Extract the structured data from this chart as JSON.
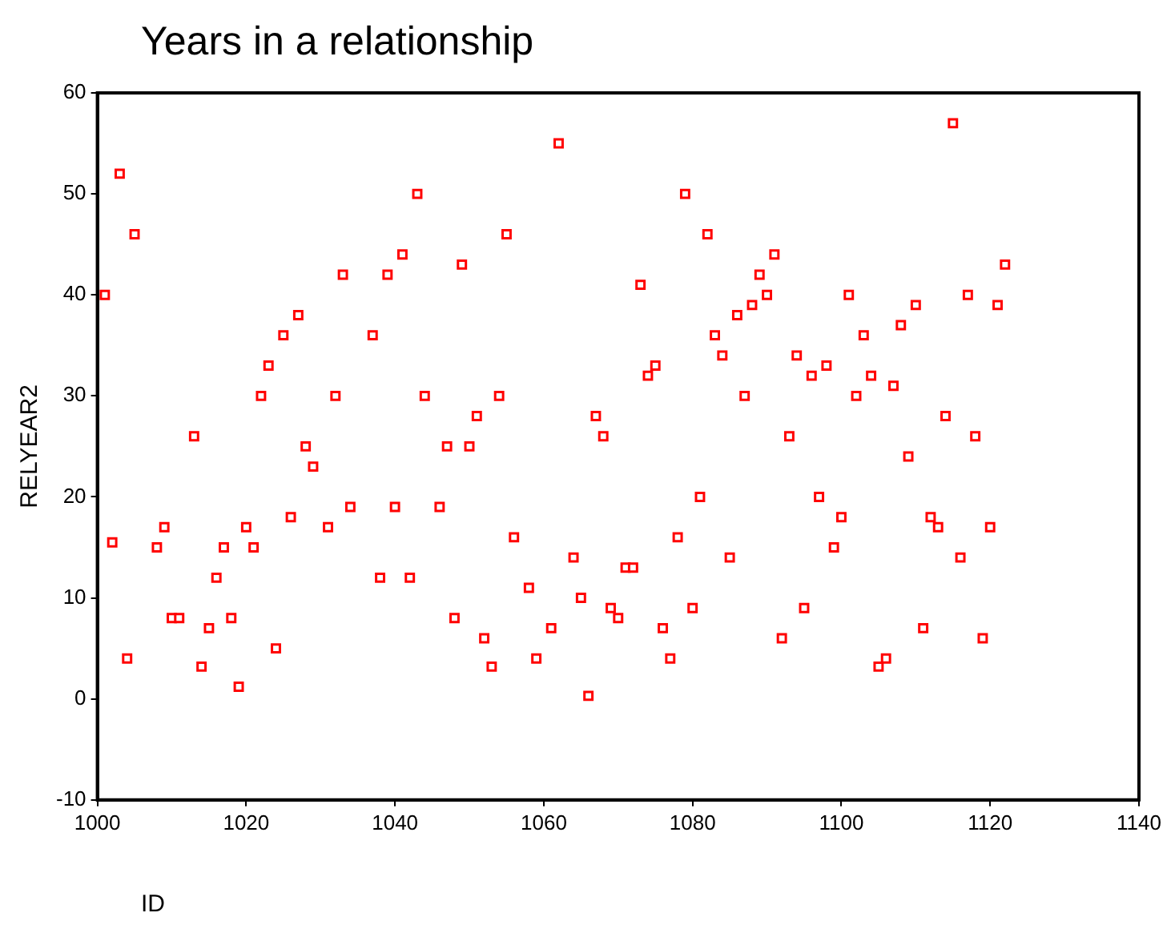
{
  "chart_data": {
    "type": "scatter",
    "title": "Years in a relationship",
    "xlabel": "ID",
    "ylabel": "RELYEAR2",
    "x": [
      1001,
      1002,
      1003,
      1004,
      1005,
      1008,
      1009,
      1010,
      1011,
      1013,
      1014,
      1015,
      1016,
      1017,
      1018,
      1019,
      1020,
      1021,
      1022,
      1023,
      1024,
      1025,
      1026,
      1027,
      1028,
      1029,
      1031,
      1032,
      1033,
      1034,
      1037,
      1038,
      1039,
      1040,
      1041,
      1042,
      1043,
      1044,
      1046,
      1047,
      1048,
      1049,
      1050,
      1051,
      1052,
      1053,
      1054,
      1055,
      1056,
      1058,
      1059,
      1061,
      1062,
      1064,
      1065,
      1066,
      1067,
      1068,
      1069,
      1070,
      1071,
      1072,
      1073,
      1074,
      1075,
      1076,
      1077,
      1078,
      1079,
      1080,
      1081,
      1082,
      1083,
      1084,
      1085,
      1086,
      1087,
      1088,
      1089,
      1090,
      1091,
      1092,
      1093,
      1094,
      1095,
      1096,
      1097,
      1098,
      1099,
      1100,
      1101,
      1102,
      1103,
      1104,
      1105,
      1106,
      1107,
      1108,
      1109,
      1110,
      1111,
      1112,
      1113,
      1114,
      1115,
      1116,
      1117,
      1118,
      1119,
      1120,
      1121,
      1122
    ],
    "series": [
      {
        "color": "#ff0000",
        "values": [
          40,
          15.5,
          52,
          4,
          46,
          15,
          17,
          8,
          8,
          26,
          3.2,
          7,
          12,
          15,
          8,
          1.2,
          17,
          15,
          30,
          33,
          5,
          36,
          18,
          38,
          25,
          23,
          17,
          30,
          42,
          19,
          36,
          12,
          42,
          19,
          44,
          12,
          50,
          30,
          19,
          25,
          8,
          43,
          25,
          28,
          6,
          3.2,
          30,
          46,
          16,
          11,
          4,
          7,
          55,
          14,
          10,
          0.3,
          28,
          26,
          9,
          8,
          13,
          13,
          41,
          32,
          33,
          7,
          4,
          16,
          50,
          9,
          20,
          46,
          36,
          34,
          14,
          38,
          30,
          39,
          42,
          40,
          44,
          6,
          26,
          34,
          9,
          32,
          20,
          33,
          15,
          18,
          40,
          30,
          36,
          32,
          3.2,
          4,
          31,
          37,
          24,
          39,
          7,
          18,
          17,
          28,
          57,
          14,
          40,
          26,
          6,
          17,
          39,
          43
        ]
      }
    ],
    "xlim": [
      1000,
      1140
    ],
    "xticks": [
      1000,
      1020,
      1040,
      1060,
      1080,
      1100,
      1120,
      1140
    ],
    "ylim": [
      -10,
      60
    ],
    "yticks": [
      -10,
      0,
      10,
      20,
      30,
      40,
      50,
      60
    ],
    "marker": "square",
    "grid": false,
    "legend": false
  }
}
